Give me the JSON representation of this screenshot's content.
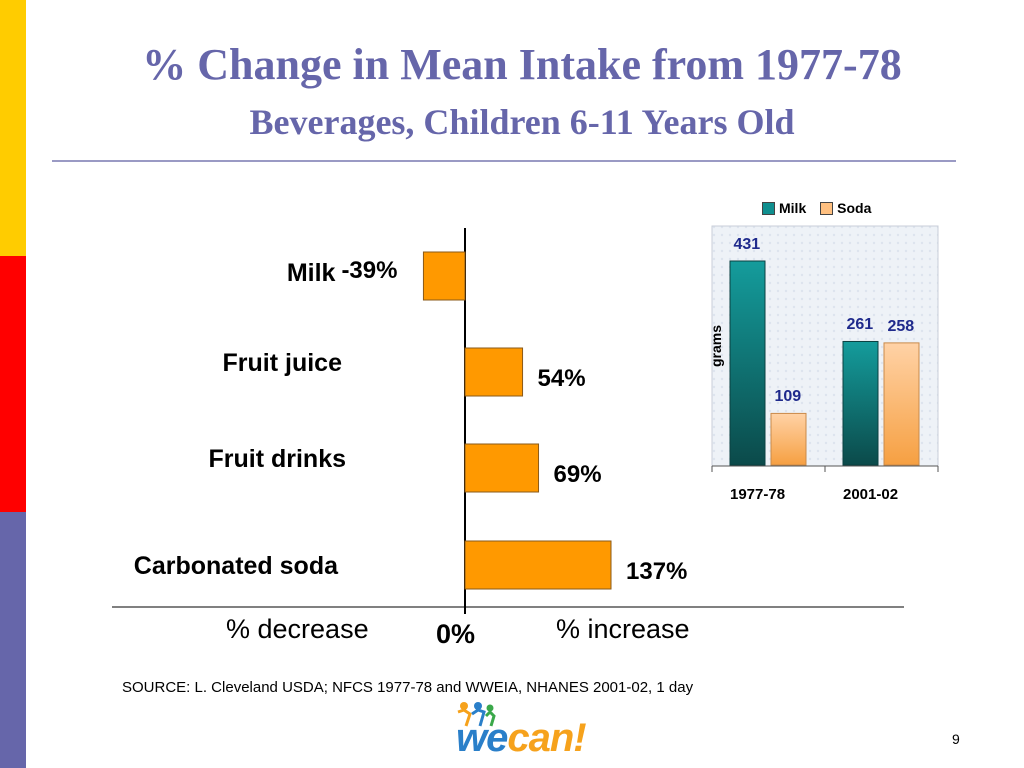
{
  "slide": {
    "title": "% Change in Mean Intake from 1977-78",
    "subtitle": "Beverages, Children 6-11 Years Old",
    "source": "SOURCE:  L. Cleveland USDA; NFCS 1977-78 and WWEIA, NHANES 2001-02, 1 day",
    "page_number": "9",
    "logo": {
      "part1": "we",
      "part2": "can!"
    },
    "colors": {
      "stripe_top": "#ffcc00",
      "stripe_mid": "#ff0000",
      "stripe_bottom": "#6666aa",
      "title": "#6666aa"
    }
  },
  "chart_data": [
    {
      "type": "bar",
      "orientation": "horizontal",
      "categories": [
        "Milk",
        "Fruit juice",
        "Fruit drinks",
        "Carbonated soda"
      ],
      "values": [
        -39,
        54,
        69,
        137
      ],
      "value_labels": [
        "-39%",
        "54%",
        "69%",
        "137%"
      ],
      "xlim": [
        -100,
        200
      ],
      "axis_words": {
        "left": "% decrease",
        "right": "% increase",
        "zero": "0%"
      },
      "bar_color": "#ff9900",
      "grid": false
    },
    {
      "type": "bar",
      "categories": [
        "1977-78",
        "2001-02"
      ],
      "series": [
        {
          "name": "Milk",
          "values": [
            431,
            261
          ],
          "color": "#0f8f8f"
        },
        {
          "name": "Soda",
          "values": [
            109,
            258
          ],
          "color": "#ffc080"
        }
      ],
      "ylabel": "grams",
      "ylim": [
        0,
        500
      ],
      "legend_position": "top",
      "grid": false
    }
  ]
}
